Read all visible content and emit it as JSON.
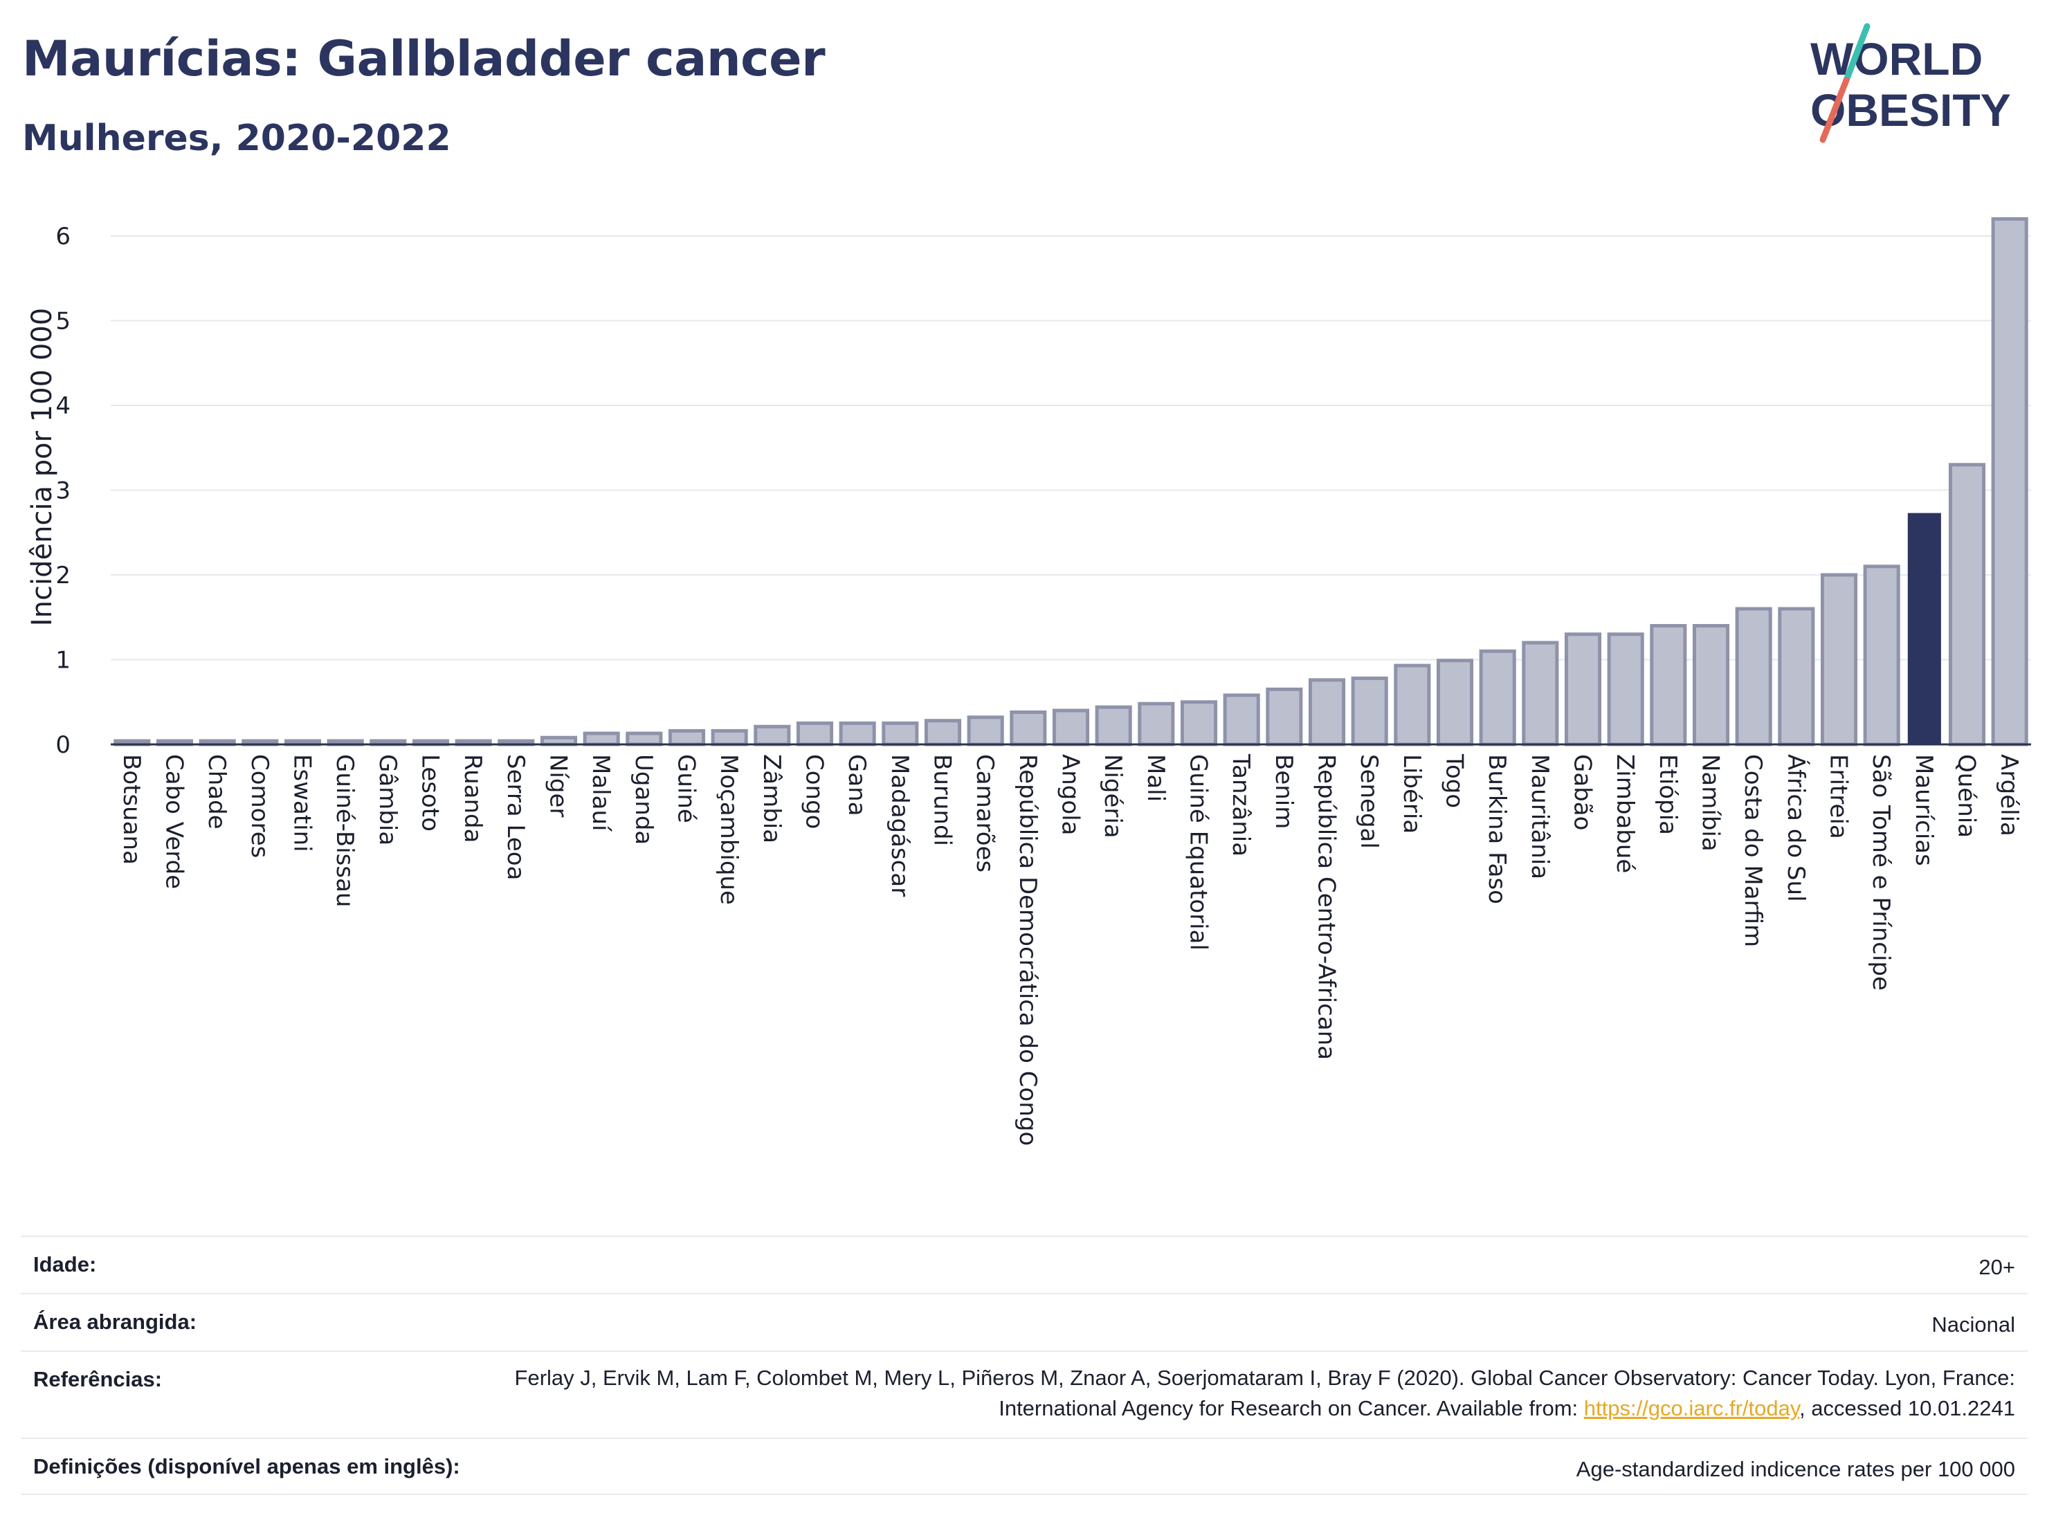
{
  "header": {
    "title": "Maurícias: Gallbladder cancer",
    "subtitle": "Mulheres, 2020-2022",
    "logo_line1": "WORLD",
    "logo_line2": "OBESITY"
  },
  "colors": {
    "bar": "#bcc0ce",
    "bar_stroke": "#8e93aa",
    "highlight": "#2b355f",
    "title": "#2b355f",
    "link": "#e7a823"
  },
  "chart_data": {
    "type": "bar",
    "ylabel": "Incidência por 100 000",
    "ylim": [
      0,
      6.4
    ],
    "yticks": [
      0,
      1,
      2,
      3,
      4,
      5,
      6
    ],
    "grid": true,
    "highlight": "Maurícias",
    "categories": [
      "Botsuana",
      "Cabo Verde",
      "Chade",
      "Comores",
      "Eswatini",
      "Guiné-Bissau",
      "Gâmbia",
      "Lesoto",
      "Ruanda",
      "Serra Leoa",
      "Níger",
      "Malauí",
      "Uganda",
      "Guiné",
      "Moçambique",
      "Zâmbia",
      "Congo",
      "Gana",
      "Madagáscar",
      "Burundi",
      "Camarões",
      "República Democrática do Congo",
      "Angola",
      "Nigéria",
      "Mali",
      "Guiné Equatorial",
      "Tanzânia",
      "Benim",
      "República Centro-Africana",
      "Senegal",
      "Libéria",
      "Togo",
      "Burkina Faso",
      "Mauritânia",
      "Gabão",
      "Zimbabué",
      "Etiópia",
      "Namíbia",
      "Costa do Marfim",
      "África do Sul",
      "Eritreia",
      "São Tomé e Príncipe",
      "Maurícias",
      "Quénia",
      "Argélia"
    ],
    "values": [
      0,
      0,
      0,
      0,
      0,
      0,
      0,
      0,
      0,
      0,
      0.08,
      0.13,
      0.13,
      0.16,
      0.16,
      0.21,
      0.25,
      0.25,
      0.25,
      0.28,
      0.32,
      0.38,
      0.4,
      0.44,
      0.48,
      0.5,
      0.58,
      0.65,
      0.76,
      0.78,
      0.93,
      0.99,
      1.1,
      1.2,
      1.3,
      1.3,
      1.4,
      1.4,
      1.6,
      1.6,
      2.0,
      2.1,
      2.73,
      3.3,
      6.2
    ]
  },
  "info": {
    "age_label": "Idade:",
    "age_value": "20+",
    "area_label": "Área abrangida:",
    "area_value": "Nacional",
    "ref_label": "Referências:",
    "ref_text_1": "Ferlay J, Ervik M, Lam F, Colombet M, Mery L, Piñeros M, Znaor A, Soerjomataram I, Bray F (2020). Global Cancer Observatory: Cancer Today. Lyon, France: International Agency for Research on Cancer. Available from: ",
    "ref_link": "https://gco.iarc.fr/today",
    "ref_text_2": ", accessed 10.01.2241",
    "def_label": "Definições (disponível apenas em inglês):",
    "def_value": "Age-standardized indicence rates per 100 000"
  }
}
